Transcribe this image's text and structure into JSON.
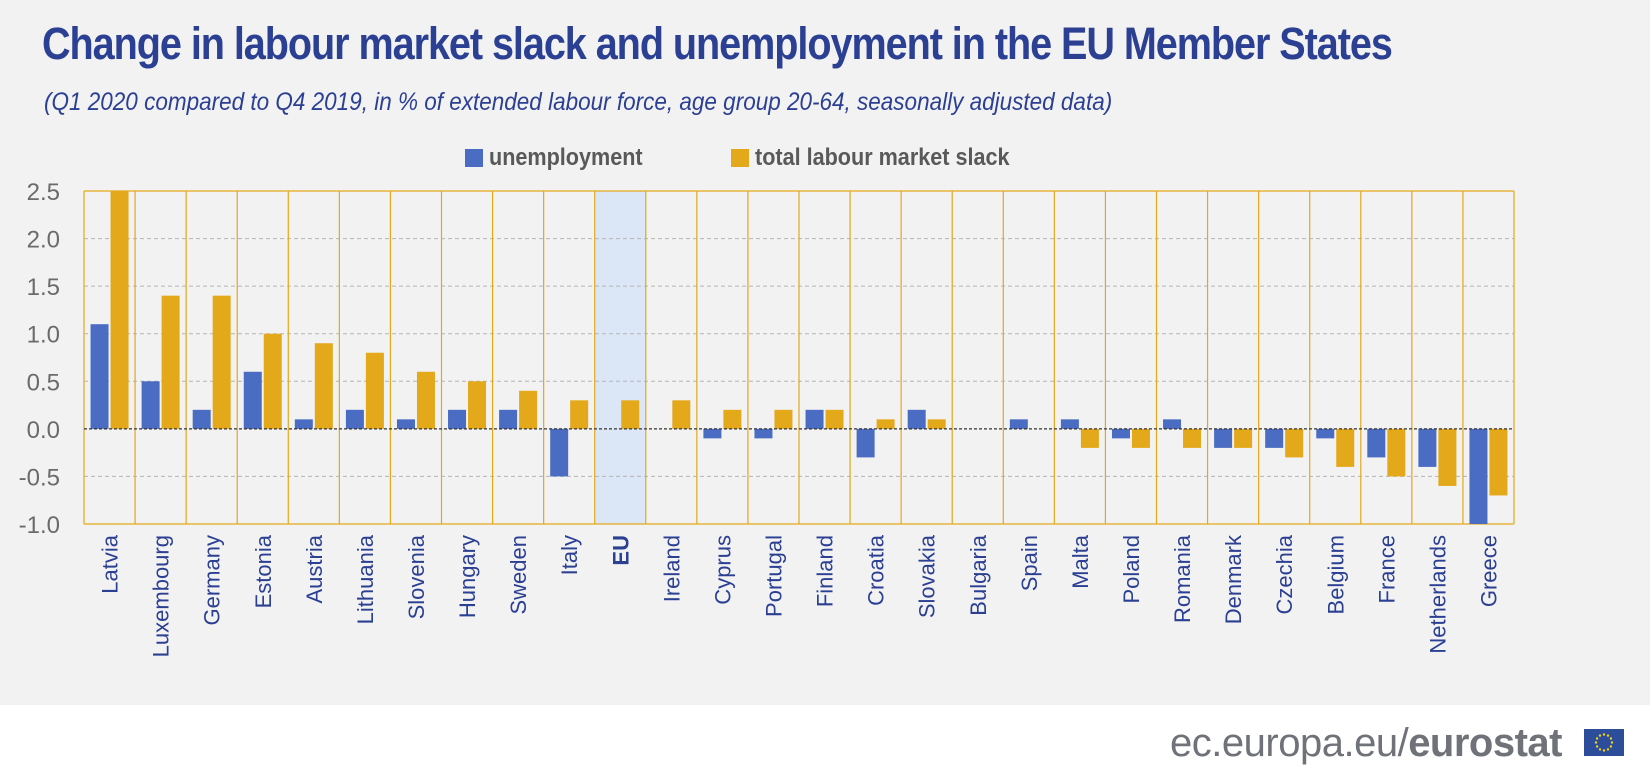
{
  "title": "Change in labour market slack and unemployment in the EU Member States",
  "subtitle": "(Q1 2020 compared to Q4 2019, in % of extended labour force, age group 20-64, seasonally adjusted data)",
  "legend": {
    "unemployment": "unemployment",
    "slack": "total labour market slack"
  },
  "colors": {
    "unemployment": "#4a6cc2",
    "slack": "#e4a81b",
    "highlight": "#dbe6f7",
    "title": "#2b3f93",
    "separator": "#e4a81b"
  },
  "footer": {
    "url": "ec.europa.eu/",
    "brand": "eurostat"
  },
  "chart_data": {
    "type": "bar",
    "title": "Change in labour market slack and unemployment in the EU Member States",
    "categories": [
      "Latvia",
      "Luxembourg",
      "Germany",
      "Estonia",
      "Austria",
      "Lithuania",
      "Slovenia",
      "Hungary",
      "Sweden",
      "Italy",
      "EU",
      "Ireland",
      "Cyprus",
      "Portugal",
      "Finland",
      "Croatia",
      "Slovakia",
      "Bulgaria",
      "Spain",
      "Malta",
      "Poland",
      "Romania",
      "Denmark",
      "Czechia",
      "Belgium",
      "France",
      "Netherlands",
      "Greece"
    ],
    "highlight": "EU",
    "series": [
      {
        "name": "unemployment",
        "values": [
          1.1,
          0.5,
          0.2,
          0.6,
          0.1,
          0.2,
          0.1,
          0.2,
          0.2,
          -0.5,
          0.0,
          0.0,
          -0.1,
          -0.1,
          0.2,
          -0.3,
          0.2,
          0.0,
          0.1,
          0.1,
          -0.1,
          0.1,
          -0.2,
          -0.2,
          -0.1,
          -0.3,
          -0.4,
          -1.0
        ]
      },
      {
        "name": "total labour market slack",
        "values": [
          2.5,
          1.4,
          1.4,
          1.0,
          0.9,
          0.8,
          0.6,
          0.5,
          0.4,
          0.3,
          0.3,
          0.3,
          0.2,
          0.2,
          0.2,
          0.1,
          0.1,
          0.0,
          0.0,
          -0.2,
          -0.2,
          -0.2,
          -0.2,
          -0.3,
          -0.4,
          -0.5,
          -0.6,
          -0.7
        ]
      }
    ],
    "yticks": [
      "2.5",
      "2.0",
      "1.5",
      "1.0",
      "0.5",
      "0.0",
      "-0.5",
      "-1.0"
    ],
    "ylim": [
      -1.0,
      2.5
    ],
    "xlabel": "",
    "ylabel": "",
    "grid": true
  }
}
